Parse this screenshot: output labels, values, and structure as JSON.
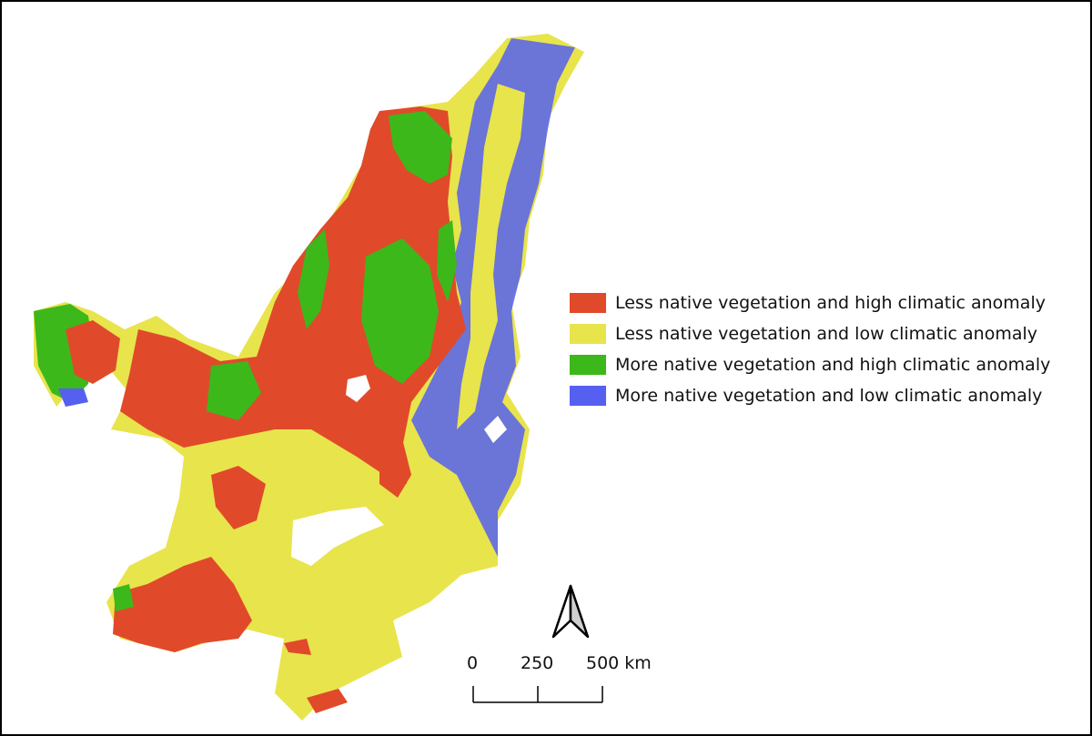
{
  "legend": {
    "items": [
      {
        "label": "Less native vegetation and high climatic anomaly",
        "color": "#e04a2a"
      },
      {
        "label": "Less native vegetation and low climatic anomaly",
        "color": "#e8e44c"
      },
      {
        "label": "More native vegetation and high climatic anomaly",
        "color": "#3cb81a"
      },
      {
        "label": "More native vegetation and low climatic anomaly",
        "color": "#5560f0"
      }
    ]
  },
  "scale_bar": {
    "ticks": [
      "0",
      "250",
      "500 km"
    ]
  },
  "north_arrow": {
    "icon": "north-arrow-icon"
  }
}
